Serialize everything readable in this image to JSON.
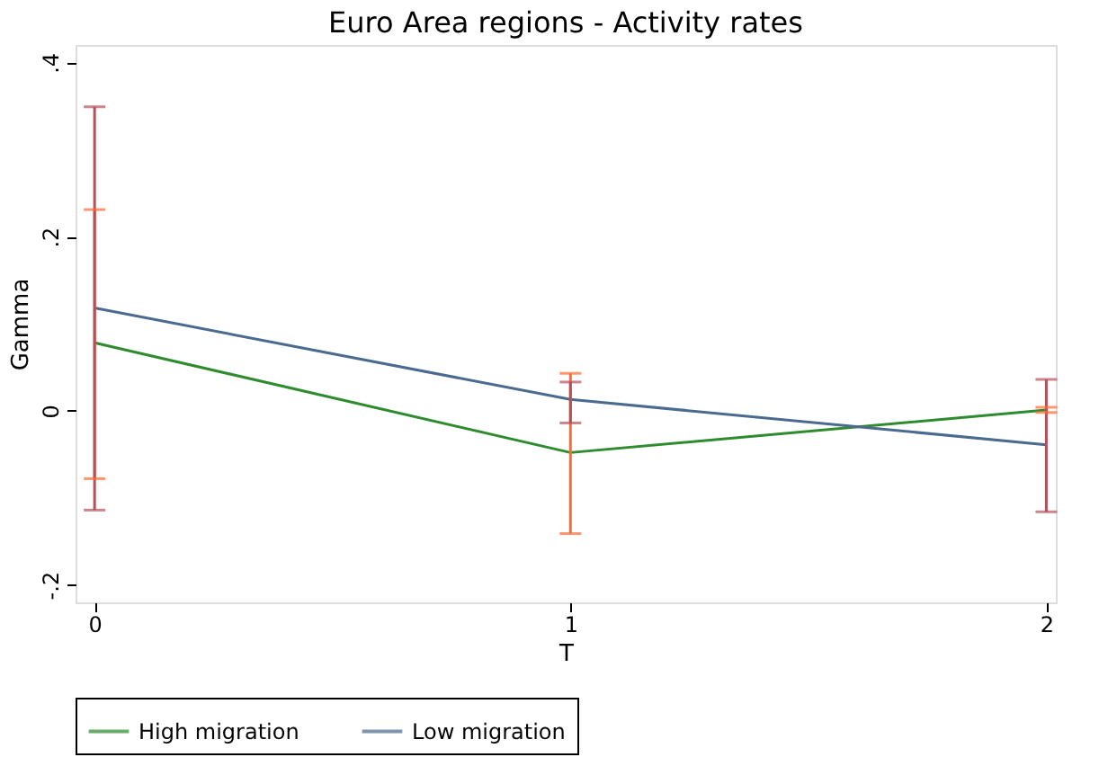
{
  "chart_data": {
    "type": "line",
    "title": "Euro Area regions - Activity rates",
    "xlabel": "T",
    "ylabel": "Gamma",
    "x": [
      0,
      1,
      2
    ],
    "series": [
      {
        "name": "High migration",
        "color": "#2e8b2e",
        "values": [
          0.078,
          -0.048,
          0.001
        ],
        "errors": [
          [
            -0.078,
            0.231
          ],
          [
            -0.141,
            0.043
          ],
          [
            -0.002,
            0.004
          ]
        ]
      },
      {
        "name": "Low migration",
        "color": "#4a6a8f",
        "values": [
          0.118,
          0.013,
          -0.039
        ],
        "errors": [
          [
            -0.114,
            0.349
          ],
          [
            -0.014,
            0.033
          ],
          [
            -0.116,
            0.036
          ]
        ]
      }
    ],
    "xlim": [
      -0.04,
      2.02
    ],
    "xticks": [
      0,
      1,
      2
    ],
    "ylim": [
      -0.22,
      0.42
    ],
    "yticks": [
      {
        "value": -0.2,
        "label": "-.2"
      },
      {
        "value": 0,
        "label": "0"
      },
      {
        "value": 0.2,
        "label": ".2"
      },
      {
        "value": 0.4,
        "label": ".4"
      }
    ],
    "grid": false,
    "legend": "bottom",
    "marker": "none",
    "line_style": "solid"
  }
}
